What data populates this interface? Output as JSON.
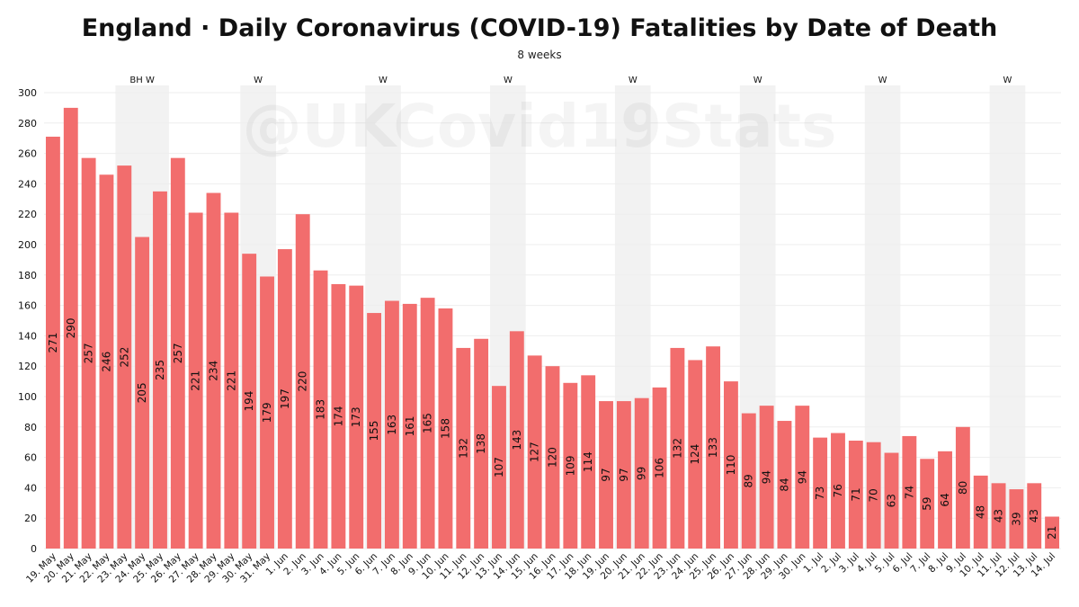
{
  "title": "England · Daily Coronavirus (COVID-19) Fatalities by Date of Death",
  "subtitle": "8 weeks",
  "watermark": "@UKCovid19Stats",
  "colors": {
    "bar": "#f26d6d",
    "band": "#f2f2f2",
    "grid": "#eeeeee"
  },
  "chart_data": {
    "type": "bar",
    "title": "England · Daily Coronavirus (COVID-19) Fatalities by Date of Death",
    "subtitle": "8 weeks",
    "xlabel": "",
    "ylabel": "",
    "ylim": [
      0,
      300
    ],
    "yticks": [
      0,
      20,
      40,
      60,
      80,
      100,
      120,
      140,
      160,
      180,
      200,
      220,
      240,
      260,
      280,
      300
    ],
    "grid": true,
    "categories": [
      "19. May",
      "20. May",
      "21. May",
      "22. May",
      "23. May",
      "24. May",
      "25. May",
      "26. May",
      "27. May",
      "28. May",
      "29. May",
      "30. May",
      "31. May",
      "1. Jun",
      "2. Jun",
      "3. Jun",
      "4. Jun",
      "5. Jun",
      "6. Jun",
      "7. Jun",
      "8. Jun",
      "9. Jun",
      "10. Jun",
      "11. Jun",
      "12. Jun",
      "13. Jun",
      "14. Jun",
      "15. Jun",
      "16. Jun",
      "17. Jun",
      "18. Jun",
      "19. Jun",
      "20. Jun",
      "21. Jun",
      "22. Jun",
      "23. Jun",
      "24. Jun",
      "25. Jun",
      "26. Jun",
      "27. Jun",
      "28. Jun",
      "29. Jun",
      "30. Jun",
      "1. Jul",
      "2. Jul",
      "3. Jul",
      "4. Jul",
      "5. Jul",
      "6. Jul",
      "7. Jul",
      "8. Jul",
      "9. Jul",
      "10. Jul",
      "11. Jul",
      "12. Jul",
      "13. Jul",
      "14. Jul"
    ],
    "values": [
      271,
      290,
      257,
      246,
      252,
      205,
      235,
      257,
      221,
      234,
      221,
      194,
      179,
      197,
      220,
      183,
      174,
      173,
      155,
      163,
      161,
      165,
      158,
      132,
      138,
      107,
      143,
      127,
      120,
      109,
      114,
      97,
      97,
      99,
      106,
      132,
      124,
      133,
      110,
      89,
      94,
      84,
      94,
      73,
      76,
      71,
      70,
      63,
      74,
      59,
      64,
      80,
      48,
      43,
      39,
      43,
      21
    ],
    "weekend_bands": [
      {
        "from": "23. May",
        "to": "25. May",
        "label": "BH W"
      },
      {
        "from": "30. May",
        "to": "31. May",
        "label": "W"
      },
      {
        "from": "6. Jun",
        "to": "7. Jun",
        "label": "W"
      },
      {
        "from": "13. Jun",
        "to": "14. Jun",
        "label": "W"
      },
      {
        "from": "20. Jun",
        "to": "21. Jun",
        "label": "W"
      },
      {
        "from": "27. Jun",
        "to": "28. Jun",
        "label": "W"
      },
      {
        "from": "4. Jul",
        "to": "5. Jul",
        "label": "W"
      },
      {
        "from": "11. Jul",
        "to": "12. Jul",
        "label": "W"
      }
    ]
  }
}
